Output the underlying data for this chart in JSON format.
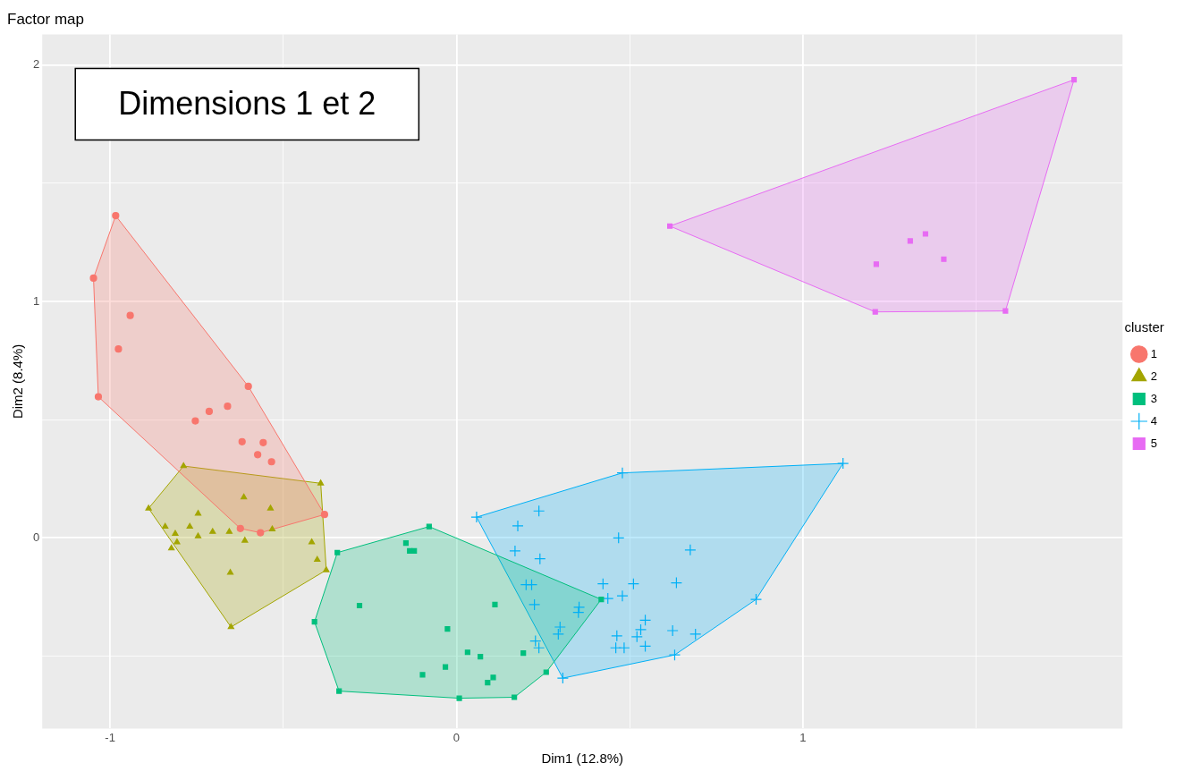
{
  "chart_data": {
    "type": "scatter",
    "title": "Factor map",
    "xlabel": "Dim1 (12.8%)",
    "ylabel": "Dim2 (8.4%)",
    "legend_title": "cluster",
    "annotations": [
      "Dimensions 1 et 2"
    ],
    "xlim": [
      -1.196,
      1.923
    ],
    "ylim": [
      -0.806,
      2.13
    ],
    "xticks": [
      {
        "value": -1,
        "label": "-1"
      },
      {
        "value": -0.5,
        "label": null
      },
      0,
      {
        "value": 0.5,
        "label": null
      },
      1,
      {
        "value": 1.5,
        "label": null
      }
    ],
    "yticks": [
      {
        "value": -0.5,
        "label": null
      },
      0,
      {
        "value": 0.5,
        "label": null
      },
      1,
      {
        "value": 1.5,
        "label": null
      },
      2
    ],
    "grid": true,
    "legend": "right",
    "series": [
      {
        "name": "1",
        "color": "#f8766d",
        "marker": "circle",
        "x": [
          -0.984,
          -1.048,
          -0.942,
          -0.976,
          -1.034,
          -0.601,
          -0.661,
          -0.714,
          -0.754,
          -0.619,
          -0.558,
          -0.574,
          -0.534,
          -0.381,
          -0.624,
          -0.566
        ],
        "values": [
          1.363,
          1.099,
          0.941,
          0.799,
          0.597,
          0.641,
          0.557,
          0.535,
          0.495,
          0.407,
          0.403,
          0.352,
          0.322,
          0.099,
          0.04,
          0.022
        ]
      },
      {
        "name": "2",
        "color": "#a3a500",
        "marker": "triangle",
        "x": [
          -0.788,
          -0.392,
          -0.889,
          -0.614,
          -0.537,
          -0.746,
          -0.841,
          -0.77,
          -0.812,
          -0.704,
          -0.656,
          -0.746,
          -0.611,
          -0.532,
          -0.807,
          -0.823,
          -0.418,
          -0.402,
          -0.376,
          -0.653,
          -0.651
        ],
        "values": [
          0.304,
          0.231,
          0.125,
          0.172,
          0.125,
          0.103,
          0.048,
          0.048,
          0.018,
          0.026,
          0.026,
          0.007,
          -0.011,
          0.037,
          -0.018,
          -0.044,
          -0.018,
          -0.092,
          -0.136,
          -0.147,
          -0.377
        ]
      },
      {
        "name": "3",
        "color": "#00bf7d",
        "marker": "square",
        "x": [
          -0.079,
          -0.344,
          -0.146,
          -0.135,
          -0.122,
          -0.28,
          0.111,
          -0.41,
          -0.026,
          0.032,
          0.069,
          0.193,
          -0.032,
          -0.098,
          0.106,
          0.09,
          0.259,
          0.418,
          -0.339,
          0.008,
          0.167
        ],
        "values": [
          0.048,
          -0.062,
          -0.022,
          -0.055,
          -0.055,
          -0.286,
          -0.282,
          -0.355,
          -0.385,
          -0.484,
          -0.502,
          -0.487,
          -0.546,
          -0.579,
          -0.59,
          -0.612,
          -0.568,
          -0.26,
          -0.648,
          -0.678,
          -0.674
        ]
      },
      {
        "name": "4",
        "color": "#00b0f6",
        "marker": "cross",
        "x": [
          1.116,
          0.479,
          0.058,
          0.238,
          0.177,
          0.468,
          0.675,
          0.169,
          0.241,
          0.201,
          0.217,
          0.423,
          0.511,
          0.635,
          0.437,
          0.479,
          0.225,
          0.354,
          0.352,
          0.545,
          0.532,
          0.299,
          0.294,
          0.463,
          0.521,
          0.624,
          0.69,
          0.865,
          0.46,
          0.484,
          0.545,
          0.228,
          0.238,
          0.63,
          0.307
        ],
        "values": [
          0.315,
          0.275,
          0.088,
          0.114,
          0.051,
          0,
          -0.051,
          -0.055,
          -0.088,
          -0.198,
          -0.198,
          -0.194,
          -0.194,
          -0.19,
          -0.256,
          -0.245,
          -0.282,
          -0.293,
          -0.315,
          -0.348,
          -0.388,
          -0.377,
          -0.407,
          -0.414,
          -0.418,
          -0.392,
          -0.407,
          -0.26,
          -0.465,
          -0.465,
          -0.458,
          -0.436,
          -0.465,
          -0.495,
          -0.593
        ]
      },
      {
        "name": "5",
        "color": "#e76bf3",
        "marker": "square",
        "x": [
          1.783,
          0.616,
          1.31,
          1.354,
          1.407,
          1.212,
          1.209,
          1.585
        ],
        "values": [
          1.938,
          1.319,
          1.256,
          1.286,
          1.179,
          1.158,
          0.956,
          0.96
        ]
      },
      {
        "type": "area",
        "color": "#f8766d",
        "x": [
          -0.984,
          -0.601,
          -0.381,
          -0.566,
          -0.624,
          -1.034,
          -1.048,
          -0.984
        ],
        "values": [
          1.363,
          0.641,
          0.099,
          0.022,
          0.04,
          0.597,
          1.099,
          1.363
        ]
      },
      {
        "type": "area",
        "color": "#a3a500",
        "x": [
          -0.788,
          -0.392,
          -0.376,
          -0.651,
          -0.889,
          -0.788
        ],
        "values": [
          0.304,
          0.231,
          -0.136,
          -0.377,
          0.125,
          0.304
        ]
      },
      {
        "type": "area",
        "color": "#00bf7d",
        "x": [
          -0.079,
          0.418,
          0.259,
          0.167,
          0.008,
          -0.339,
          -0.41,
          -0.344,
          -0.079
        ],
        "values": [
          0.048,
          -0.26,
          -0.568,
          -0.674,
          -0.678,
          -0.648,
          -0.355,
          -0.062,
          0.048
        ]
      },
      {
        "type": "area",
        "color": "#00b0f6",
        "x": [
          0.058,
          0.479,
          1.116,
          0.865,
          0.63,
          0.307,
          0.058
        ],
        "values": [
          0.088,
          0.275,
          0.315,
          -0.26,
          -0.495,
          -0.593,
          0.088
        ]
      },
      {
        "type": "area",
        "color": "#e76bf3",
        "x": [
          1.783,
          1.585,
          1.209,
          0.616,
          1.783
        ],
        "values": [
          1.938,
          0.96,
          0.956,
          1.319,
          1.938
        ]
      }
    ]
  }
}
